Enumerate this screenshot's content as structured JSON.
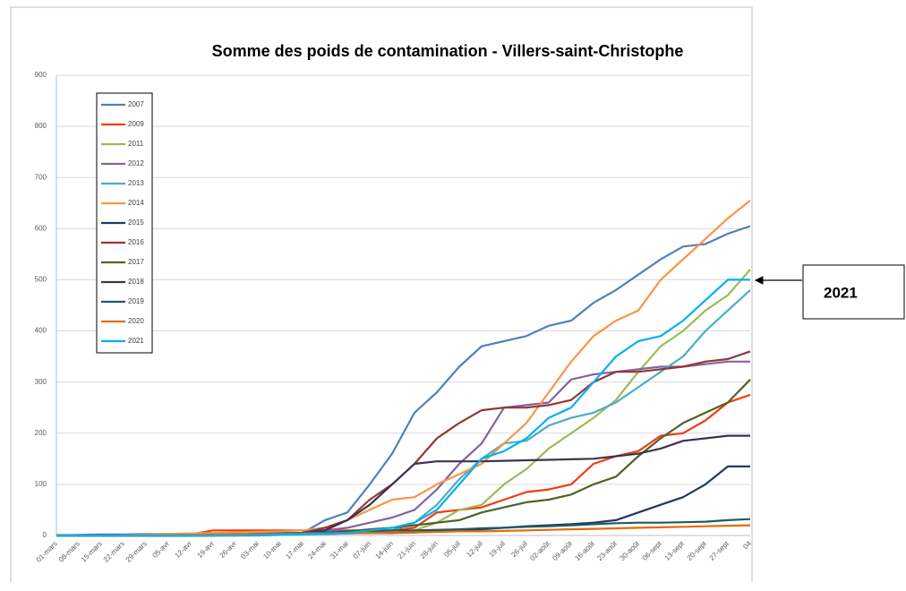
{
  "chart_data": {
    "type": "line",
    "title": "Somme des poids de contamination - Villers-saint-Christophe",
    "annotation": "2021",
    "categories": [
      "01-mars",
      "08-mars",
      "15-mars",
      "22-mars",
      "29-mars",
      "05-avr",
      "12-avr",
      "19-avr",
      "26-avr",
      "03-mai",
      "10-mai",
      "17-mai",
      "24-mai",
      "31-mai",
      "07-juin",
      "14-juin",
      "21-juin",
      "28-juin",
      "05-juil",
      "12-juil",
      "19-juil",
      "26-juil",
      "02-août",
      "09-août",
      "16-août",
      "23-août",
      "30-août",
      "06-sept",
      "13-sept",
      "20-sept",
      "27-sept",
      "04"
    ],
    "ylim": [
      0,
      900
    ],
    "yticks": [
      0,
      100,
      200,
      300,
      400,
      500,
      600,
      700,
      800,
      900
    ],
    "grid": true,
    "legend": "upper left",
    "series": [
      {
        "name": "2007",
        "color": "#4f81bd",
        "values": [
          0,
          1,
          2,
          2,
          3,
          3,
          3,
          4,
          4,
          5,
          5,
          5,
          30,
          45,
          100,
          160,
          240,
          280,
          330,
          370,
          380,
          390,
          410,
          420,
          455,
          480,
          510,
          540,
          565,
          570,
          590,
          605
        ]
      },
      {
        "name": "2009",
        "color": "#f43a0e",
        "values": [
          0,
          0,
          0,
          0,
          0,
          0,
          2,
          10,
          10,
          10,
          10,
          10,
          10,
          10,
          10,
          10,
          15,
          45,
          50,
          55,
          70,
          85,
          90,
          100,
          140,
          155,
          165,
          195,
          200,
          225,
          260,
          275
        ]
      },
      {
        "name": "2011",
        "color": "#9bbb59",
        "values": [
          0,
          0,
          0,
          0,
          0,
          0,
          0,
          0,
          0,
          0,
          2,
          3,
          3,
          4,
          5,
          5,
          10,
          25,
          50,
          60,
          100,
          130,
          170,
          200,
          230,
          265,
          320,
          370,
          400,
          440,
          470,
          520
        ]
      },
      {
        "name": "2012",
        "color": "#8064a2",
        "values": [
          0,
          0,
          0,
          0,
          0,
          0,
          0,
          0,
          2,
          3,
          4,
          5,
          10,
          15,
          25,
          35,
          50,
          90,
          140,
          180,
          250,
          255,
          260,
          305,
          315,
          320,
          325,
          330,
          330,
          335,
          340,
          340
        ]
      },
      {
        "name": "2013",
        "color": "#4bacc6",
        "values": [
          0,
          0,
          0,
          0,
          0,
          0,
          0,
          0,
          0,
          0,
          1,
          2,
          3,
          4,
          5,
          10,
          25,
          60,
          110,
          150,
          180,
          185,
          215,
          230,
          240,
          260,
          290,
          320,
          350,
          400,
          440,
          480
        ]
      },
      {
        "name": "2014",
        "color": "#f79646",
        "values": [
          0,
          0,
          0,
          1,
          2,
          3,
          4,
          5,
          6,
          7,
          8,
          10,
          15,
          30,
          50,
          70,
          75,
          100,
          120,
          140,
          180,
          220,
          280,
          340,
          390,
          420,
          440,
          500,
          540,
          580,
          620,
          655
        ]
      },
      {
        "name": "2015",
        "color": "#1f3864",
        "values": [
          0,
          0,
          0,
          0,
          0,
          0,
          0,
          1,
          2,
          3,
          3,
          4,
          4,
          5,
          5,
          5,
          6,
          8,
          10,
          12,
          15,
          18,
          20,
          22,
          25,
          30,
          45,
          60,
          75,
          100,
          135,
          135
        ]
      },
      {
        "name": "2016",
        "color": "#943634",
        "values": [
          0,
          0,
          0,
          0,
          0,
          0,
          0,
          0,
          1,
          2,
          3,
          5,
          15,
          30,
          70,
          100,
          140,
          190,
          220,
          245,
          250,
          250,
          255,
          265,
          300,
          320,
          320,
          325,
          330,
          340,
          345,
          360
        ]
      },
      {
        "name": "2017",
        "color": "#4f6228",
        "values": [
          0,
          0,
          0,
          0,
          0,
          0,
          0,
          0,
          0,
          1,
          2,
          3,
          5,
          8,
          12,
          15,
          20,
          25,
          30,
          45,
          55,
          65,
          70,
          80,
          100,
          115,
          155,
          190,
          220,
          240,
          260,
          305
        ]
      },
      {
        "name": "2018",
        "color": "#3f3151",
        "values": [
          0,
          0,
          0,
          0,
          0,
          0,
          0,
          0,
          1,
          2,
          3,
          5,
          10,
          30,
          60,
          100,
          140,
          145,
          145,
          145,
          146,
          147,
          148,
          149,
          150,
          155,
          160,
          170,
          185,
          190,
          195,
          195
        ]
      },
      {
        "name": "2019",
        "color": "#215967",
        "values": [
          0,
          0,
          0,
          0,
          0,
          0,
          0,
          1,
          2,
          3,
          4,
          5,
          6,
          7,
          8,
          10,
          10,
          11,
          12,
          14,
          15,
          17,
          18,
          20,
          22,
          24,
          25,
          25,
          26,
          27,
          30,
          32
        ]
      },
      {
        "name": "2020",
        "color": "#e36c09",
        "values": [
          0,
          0,
          0,
          0,
          0,
          1,
          1,
          2,
          2,
          3,
          3,
          4,
          4,
          5,
          5,
          6,
          6,
          7,
          8,
          8,
          9,
          10,
          11,
          12,
          13,
          14,
          15,
          16,
          17,
          18,
          19,
          20
        ]
      },
      {
        "name": "2021",
        "color": "#00b0f0",
        "values": [
          0,
          0,
          0,
          0,
          0,
          0,
          0,
          0,
          0,
          1,
          2,
          3,
          4,
          5,
          10,
          15,
          25,
          50,
          100,
          150,
          165,
          190,
          230,
          250,
          300,
          350,
          380,
          390,
          420,
          460,
          500,
          500
        ]
      }
    ]
  }
}
